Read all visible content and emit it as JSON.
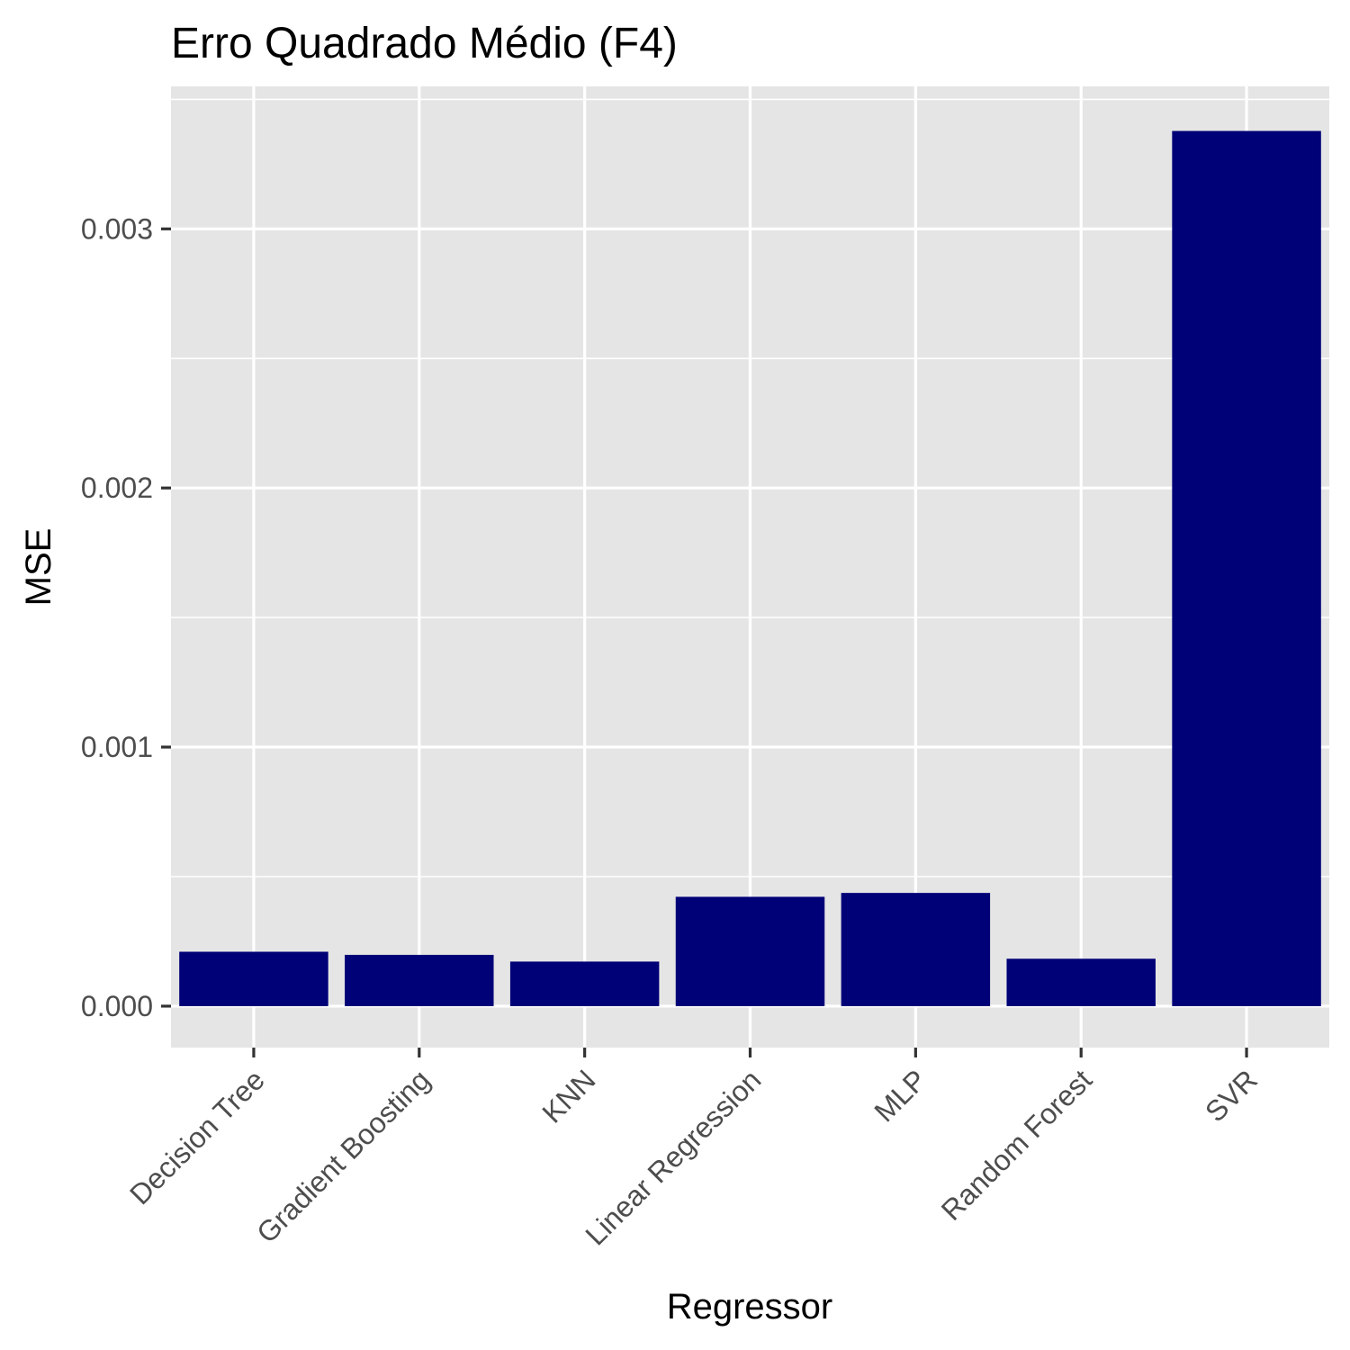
{
  "chart_data": {
    "type": "bar",
    "title": "Erro Quadrado Médio (F4)",
    "xlabel": "Regressor",
    "ylabel": "MSE",
    "categories": [
      "Decision Tree",
      "Gradient Boosting",
      "KNN",
      "Linear Regression",
      "MLP",
      "Random Forest",
      "SVR"
    ],
    "values": [
      0.00021,
      0.000198,
      0.000172,
      0.000422,
      0.000437,
      0.000183,
      0.003378
    ],
    "ylim": [
      -0.00016,
      0.00355
    ],
    "yticks": [
      0.0,
      0.001,
      0.002,
      0.003
    ],
    "ytick_labels": [
      "0.000",
      "0.001",
      "0.002",
      "0.003"
    ],
    "grid": true,
    "bar_color": "#000077",
    "panel_color": "#e5e5e5"
  }
}
